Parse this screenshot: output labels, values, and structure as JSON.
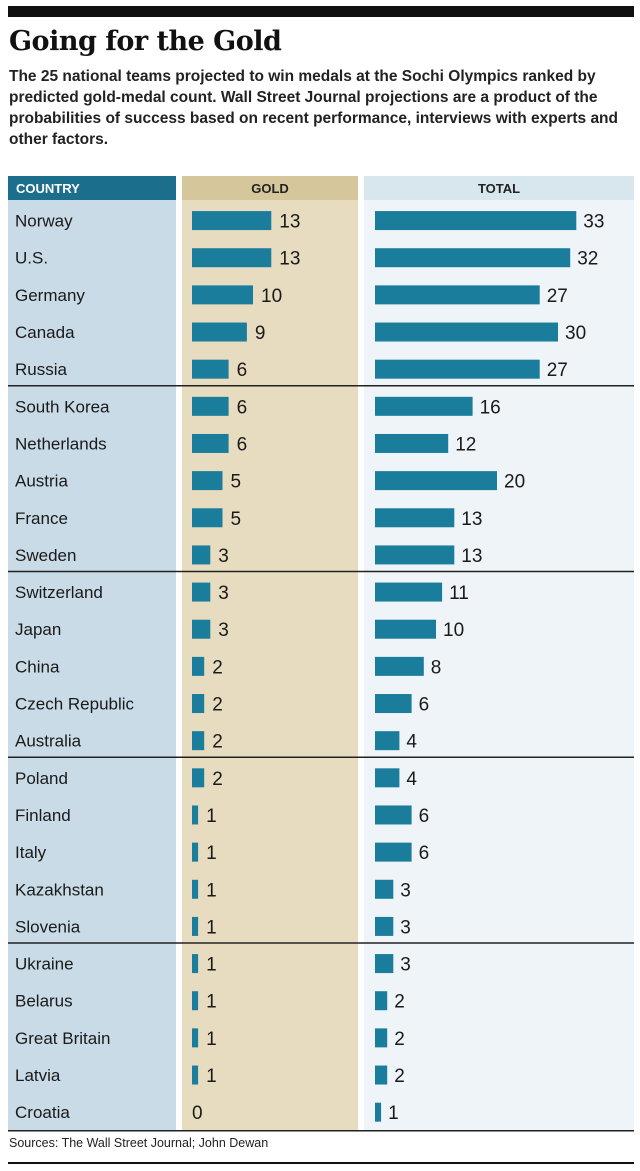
{
  "title": "Going for the Gold",
  "subtitle": "The 25 national teams projected to win medals at the Sochi Olympics ranked by predicted gold-medal count. Wall Street Journal projections are a product of the probabilities of success based on recent performance, interviews with experts and other factors.",
  "source": "Sources: The Wall Street Journal; John Dewan",
  "colors": {
    "bar": "#1b7d9c",
    "header_dark": "#1b6f8c",
    "country_bg": "#c9dbe6",
    "gold_bg": "#e8dcc0",
    "gold_header": "#d6c69c",
    "total_bg": "#eef4f7",
    "total_header": "#d8e6ee",
    "rule": "#222222"
  },
  "chart_data": {
    "type": "bar",
    "orientation": "horizontal",
    "title": "Going for the Gold",
    "column_headers": [
      "COUNTRY",
      "GOLD",
      "TOTAL"
    ],
    "categories": [
      "Norway",
      "U.S.",
      "Germany",
      "Canada",
      "Russia",
      "South Korea",
      "Netherlands",
      "Austria",
      "France",
      "Sweden",
      "Switzerland",
      "Japan",
      "China",
      "Czech Republic",
      "Australia",
      "Poland",
      "Finland",
      "Italy",
      "Kazakhstan",
      "Slovenia",
      "Ukraine",
      "Belarus",
      "Great Britain",
      "Latvia",
      "Croatia"
    ],
    "series": [
      {
        "name": "GOLD",
        "values": [
          13,
          13,
          10,
          9,
          6,
          6,
          6,
          5,
          5,
          3,
          3,
          3,
          2,
          2,
          2,
          2,
          1,
          1,
          1,
          1,
          1,
          1,
          1,
          1,
          0
        ]
      },
      {
        "name": "TOTAL",
        "values": [
          33,
          32,
          27,
          30,
          27,
          16,
          12,
          20,
          13,
          13,
          11,
          10,
          8,
          6,
          4,
          4,
          6,
          6,
          3,
          3,
          3,
          2,
          2,
          2,
          1
        ]
      }
    ],
    "group_size": 5
  }
}
